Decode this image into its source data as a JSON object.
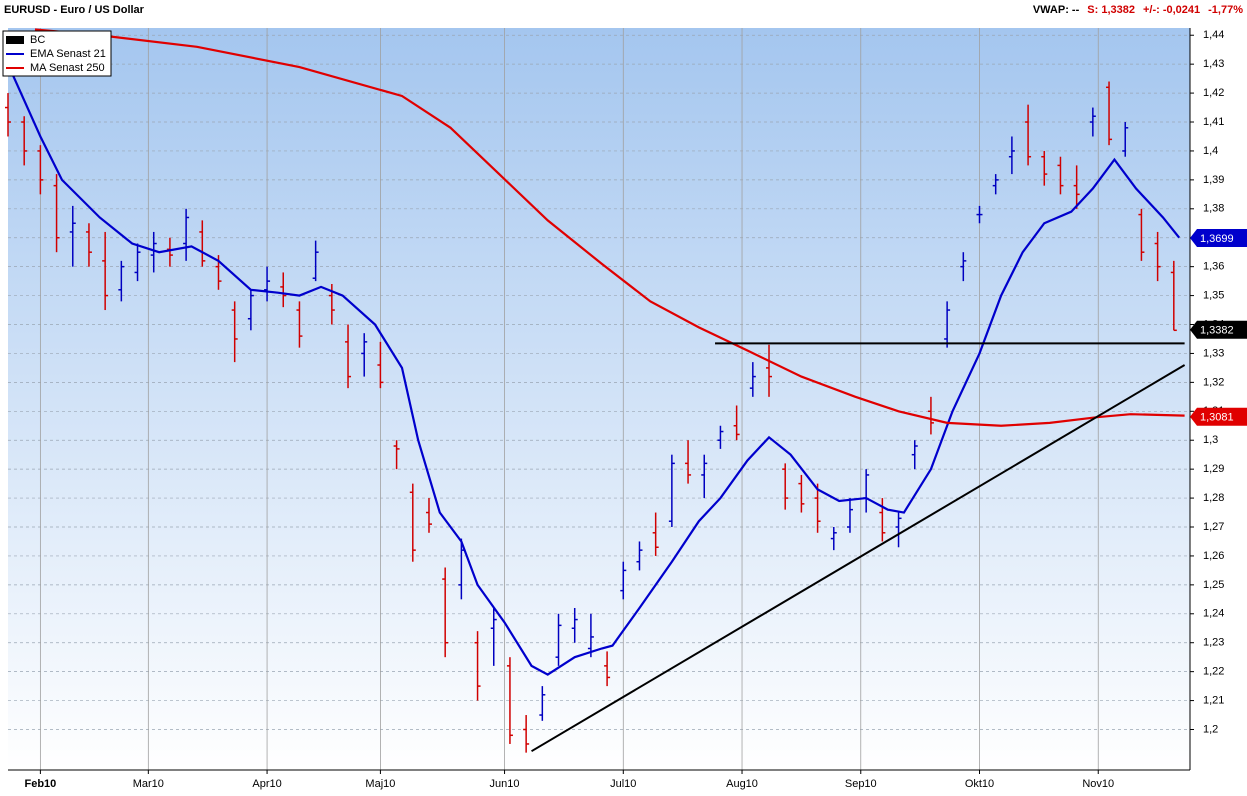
{
  "chart_data": {
    "type": "ohlc",
    "title": "EURUSD - Euro / US Dollar",
    "header_info": [
      "VWAP: --",
      "S: 1,3382",
      "+/-: -0,0241",
      "-1,77%"
    ],
    "ohlc_name": "BC",
    "ohlc_legend_color": "#000000",
    "up_color": "#0000c0",
    "down_color": "#d00000",
    "legend": "top-left",
    "grid": true,
    "x": [
      0,
      3,
      6,
      9,
      12,
      15,
      18,
      21,
      24,
      27,
      30,
      33,
      36,
      39,
      42,
      45,
      48,
      51,
      54,
      57,
      60,
      63,
      66,
      69,
      72,
      75,
      78,
      81,
      84,
      87,
      90,
      93,
      96,
      99,
      102,
      105,
      108,
      111,
      114,
      117,
      120,
      123,
      126,
      129,
      132,
      135,
      138,
      141,
      144,
      147,
      150,
      153,
      156,
      159,
      162,
      165,
      168,
      171,
      174,
      177,
      180,
      183,
      186,
      189,
      192,
      195,
      198,
      201,
      204,
      207,
      210,
      213,
      216
    ],
    "open": [
      1.415,
      1.41,
      1.4,
      1.388,
      1.372,
      1.372,
      1.362,
      1.352,
      1.358,
      1.364,
      1.366,
      1.368,
      1.372,
      1.36,
      1.345,
      1.342,
      1.352,
      1.353,
      1.345,
      1.356,
      1.35,
      1.334,
      1.33,
      1.326,
      1.298,
      1.282,
      1.275,
      1.252,
      1.25,
      1.23,
      1.235,
      1.222,
      1.2,
      1.205,
      1.225,
      1.235,
      1.228,
      1.222,
      1.248,
      1.258,
      1.268,
      1.272,
      1.292,
      1.288,
      1.3,
      1.305,
      1.318,
      1.325,
      1.29,
      1.285,
      1.28,
      1.266,
      1.27,
      1.28,
      1.275,
      1.27,
      1.295,
      1.31,
      1.335,
      1.36,
      1.378,
      1.388,
      1.398,
      1.41,
      1.398,
      1.395,
      1.388,
      1.41,
      1.422,
      1.4,
      1.378,
      1.368,
      1.358
    ],
    "high": [
      1.42,
      1.412,
      1.402,
      1.392,
      1.381,
      1.375,
      1.372,
      1.362,
      1.368,
      1.372,
      1.37,
      1.38,
      1.376,
      1.364,
      1.348,
      1.352,
      1.36,
      1.358,
      1.348,
      1.369,
      1.354,
      1.34,
      1.337,
      1.334,
      1.3,
      1.285,
      1.28,
      1.256,
      1.266,
      1.234,
      1.242,
      1.225,
      1.205,
      1.215,
      1.24,
      1.242,
      1.24,
      1.227,
      1.258,
      1.265,
      1.275,
      1.295,
      1.3,
      1.295,
      1.305,
      1.312,
      1.327,
      1.333,
      1.292,
      1.288,
      1.285,
      1.27,
      1.28,
      1.29,
      1.28,
      1.275,
      1.3,
      1.315,
      1.348,
      1.365,
      1.381,
      1.392,
      1.405,
      1.416,
      1.4,
      1.398,
      1.395,
      1.415,
      1.424,
      1.41,
      1.38,
      1.372,
      1.362
    ],
    "low": [
      1.405,
      1.395,
      1.385,
      1.365,
      1.36,
      1.36,
      1.345,
      1.348,
      1.355,
      1.358,
      1.36,
      1.362,
      1.36,
      1.352,
      1.327,
      1.338,
      1.348,
      1.346,
      1.332,
      1.355,
      1.34,
      1.318,
      1.322,
      1.318,
      1.29,
      1.258,
      1.268,
      1.225,
      1.245,
      1.21,
      1.222,
      1.195,
      1.192,
      1.203,
      1.222,
      1.23,
      1.225,
      1.215,
      1.245,
      1.255,
      1.26,
      1.27,
      1.285,
      1.28,
      1.297,
      1.3,
      1.315,
      1.315,
      1.276,
      1.275,
      1.268,
      1.262,
      1.268,
      1.275,
      1.265,
      1.263,
      1.29,
      1.302,
      1.332,
      1.355,
      1.375,
      1.385,
      1.392,
      1.395,
      1.388,
      1.385,
      1.38,
      1.405,
      1.402,
      1.398,
      1.362,
      1.355,
      1.338
    ],
    "close": [
      1.41,
      1.4,
      1.39,
      1.37,
      1.375,
      1.365,
      1.35,
      1.36,
      1.365,
      1.368,
      1.364,
      1.377,
      1.362,
      1.355,
      1.335,
      1.35,
      1.355,
      1.35,
      1.336,
      1.365,
      1.345,
      1.322,
      1.334,
      1.32,
      1.297,
      1.262,
      1.271,
      1.23,
      1.262,
      1.215,
      1.238,
      1.198,
      1.195,
      1.212,
      1.236,
      1.238,
      1.232,
      1.218,
      1.255,
      1.262,
      1.263,
      1.292,
      1.288,
      1.292,
      1.303,
      1.302,
      1.322,
      1.322,
      1.28,
      1.278,
      1.272,
      1.268,
      1.276,
      1.288,
      1.268,
      1.273,
      1.298,
      1.306,
      1.345,
      1.362,
      1.378,
      1.39,
      1.4,
      1.398,
      1.392,
      1.388,
      1.385,
      1.412,
      1.404,
      1.408,
      1.365,
      1.36,
      1.338
    ],
    "series": [
      {
        "name": "EMA  Senast 21",
        "color": "#0000cc",
        "x": [
          0,
          6,
          10,
          17,
          23,
          28,
          34,
          39,
          45,
          50,
          54,
          58,
          62,
          68,
          73,
          76,
          80,
          84,
          87,
          92,
          97,
          100,
          105,
          110,
          112,
          117,
          123,
          128,
          132,
          137,
          141,
          145,
          150,
          154,
          159,
          163,
          166,
          171,
          175,
          180,
          184,
          188,
          192,
          197,
          201,
          205,
          209,
          214,
          217
        ],
        "values": [
          1.43,
          1.405,
          1.39,
          1.377,
          1.368,
          1.365,
          1.367,
          1.362,
          1.352,
          1.351,
          1.35,
          1.353,
          1.35,
          1.34,
          1.325,
          1.3,
          1.275,
          1.265,
          1.25,
          1.237,
          1.222,
          1.219,
          1.225,
          1.228,
          1.229,
          1.242,
          1.258,
          1.272,
          1.28,
          1.293,
          1.301,
          1.295,
          1.283,
          1.279,
          1.28,
          1.276,
          1.275,
          1.29,
          1.31,
          1.33,
          1.35,
          1.365,
          1.375,
          1.379,
          1.387,
          1.397,
          1.387,
          1.377,
          1.37
        ]
      },
      {
        "name": "MA  Senast 250",
        "color": "#e00000",
        "x": [
          5,
          17,
          35,
          54,
          73,
          82,
          91,
          100,
          110,
          119,
          128,
          137,
          147,
          157,
          165,
          174,
          184,
          193,
          202,
          208,
          218
        ],
        "values": [
          1.442,
          1.44,
          1.436,
          1.429,
          1.419,
          1.408,
          1.392,
          1.376,
          1.361,
          1.348,
          1.339,
          1.331,
          1.322,
          1.315,
          1.31,
          1.306,
          1.305,
          1.306,
          1.308,
          1.309,
          1.3085
        ]
      }
    ],
    "trendlines": [
      {
        "color": "#000000",
        "x": [
          97,
          218
        ],
        "values": [
          1.1925,
          1.326
        ]
      },
      {
        "color": "#000000",
        "x": [
          131,
          218
        ],
        "values": [
          1.3335,
          1.3335
        ]
      }
    ],
    "price_labels": [
      {
        "value": 1.3699,
        "label": "1,3699",
        "color": "#0000cc"
      },
      {
        "value": 1.3382,
        "label": "1,3382",
        "color": "#000000"
      },
      {
        "value": 1.3081,
        "label": "1,3081",
        "color": "#e00000"
      }
    ],
    "xlim": [
      0,
      219
    ],
    "xticks": [
      {
        "value": 6,
        "label": "Feb10"
      },
      {
        "value": 26,
        "label": "Mar10"
      },
      {
        "value": 48,
        "label": "Apr10"
      },
      {
        "value": 69,
        "label": "Maj10"
      },
      {
        "value": 92,
        "label": "Jun10"
      },
      {
        "value": 114,
        "label": "Jul10"
      },
      {
        "value": 136,
        "label": "Aug10"
      },
      {
        "value": 158,
        "label": "Sep10"
      },
      {
        "value": 180,
        "label": "Okt10"
      },
      {
        "value": 202,
        "label": "Nov10"
      }
    ],
    "ylim": [
      1.186,
      1.4425
    ],
    "yticks": [
      {
        "value": 1.2,
        "label": "1,2"
      },
      {
        "value": 1.21,
        "label": "1,21"
      },
      {
        "value": 1.22,
        "label": "1,22"
      },
      {
        "value": 1.23,
        "label": "1,23"
      },
      {
        "value": 1.24,
        "label": "1,24"
      },
      {
        "value": 1.25,
        "label": "1,25"
      },
      {
        "value": 1.26,
        "label": "1,26"
      },
      {
        "value": 1.27,
        "label": "1,27"
      },
      {
        "value": 1.28,
        "label": "1,28"
      },
      {
        "value": 1.29,
        "label": "1,29"
      },
      {
        "value": 1.3,
        "label": "1,3"
      },
      {
        "value": 1.31,
        "label": "1,31"
      },
      {
        "value": 1.32,
        "label": "1,32"
      },
      {
        "value": 1.33,
        "label": "1,33"
      },
      {
        "value": 1.34,
        "label": "1,34"
      },
      {
        "value": 1.35,
        "label": "1,35"
      },
      {
        "value": 1.36,
        "label": "1,36"
      },
      {
        "value": 1.37,
        "label": "1,37"
      },
      {
        "value": 1.38,
        "label": "1,38"
      },
      {
        "value": 1.39,
        "label": "1,39"
      },
      {
        "value": 1.4,
        "label": "1,4"
      },
      {
        "value": 1.41,
        "label": "1,41"
      },
      {
        "value": 1.42,
        "label": "1,42"
      },
      {
        "value": 1.43,
        "label": "1,43"
      },
      {
        "value": 1.44,
        "label": "1,44"
      }
    ]
  }
}
